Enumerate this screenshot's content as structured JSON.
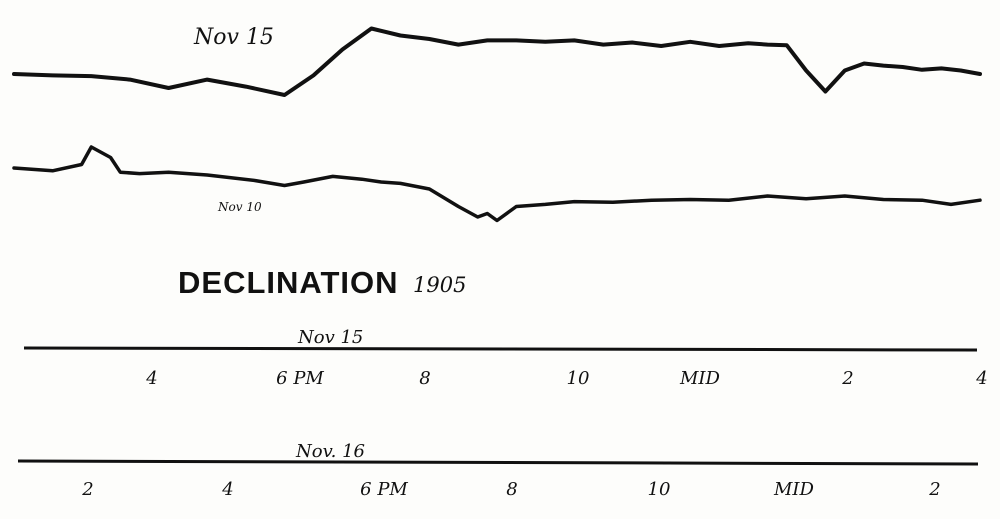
{
  "chart_data": {
    "type": "line",
    "title": "DECLINATION",
    "year": "1905",
    "series": [
      {
        "name": "Nov 15",
        "x": [
          0,
          4,
          8,
          12,
          16,
          20,
          24,
          28,
          31,
          34,
          37,
          40,
          43,
          46,
          49,
          52,
          55,
          58,
          61,
          64,
          67,
          70,
          73,
          76,
          78,
          80,
          82,
          84,
          86,
          88,
          90,
          92,
          94,
          96,
          98,
          100
        ],
        "y": [
          0.0,
          -0.2,
          -0.3,
          -0.8,
          -2.0,
          -0.8,
          -1.8,
          -3.0,
          -0.2,
          3.5,
          6.5,
          5.5,
          5.0,
          4.2,
          4.8,
          4.8,
          4.6,
          4.8,
          4.2,
          4.5,
          4.0,
          4.6,
          4.0,
          4.4,
          4.2,
          4.1,
          0.5,
          -2.5,
          0.5,
          1.5,
          1.2,
          1.0,
          0.6,
          0.8,
          0.5,
          0.0
        ]
      },
      {
        "name": "Nov 10",
        "x": [
          0,
          4,
          7,
          8,
          10,
          11,
          13,
          16,
          20,
          25,
          28,
          30,
          33,
          36,
          38,
          40,
          43,
          46,
          48,
          49,
          50,
          52,
          55,
          58,
          62,
          66,
          70,
          74,
          78,
          82,
          86,
          90,
          94,
          97,
          100
        ],
        "y": [
          0.0,
          -0.4,
          0.5,
          3.0,
          1.5,
          -0.6,
          -0.8,
          -0.6,
          -1.0,
          -1.8,
          -2.5,
          -2.0,
          -1.2,
          -1.6,
          -2.0,
          -2.2,
          -3.0,
          -5.5,
          -7.0,
          -6.5,
          -7.5,
          -5.5,
          -5.2,
          -4.8,
          -4.9,
          -4.6,
          -4.5,
          -4.6,
          -4.0,
          -4.4,
          -4.0,
          -4.5,
          -4.6,
          -5.2,
          -4.6
        ]
      }
    ],
    "annotations": {
      "nov15": "Nov 15",
      "nov10": "Nov 10"
    },
    "axes": [
      {
        "date": "Nov 15",
        "ticks": [
          "4",
          "6 PM",
          "8",
          "10",
          "MID",
          "2",
          "4"
        ]
      },
      {
        "date": "Nov. 16",
        "ticks": [
          "2",
          "4",
          "6 PM",
          "8",
          "10",
          "MID",
          "2"
        ]
      }
    ]
  }
}
